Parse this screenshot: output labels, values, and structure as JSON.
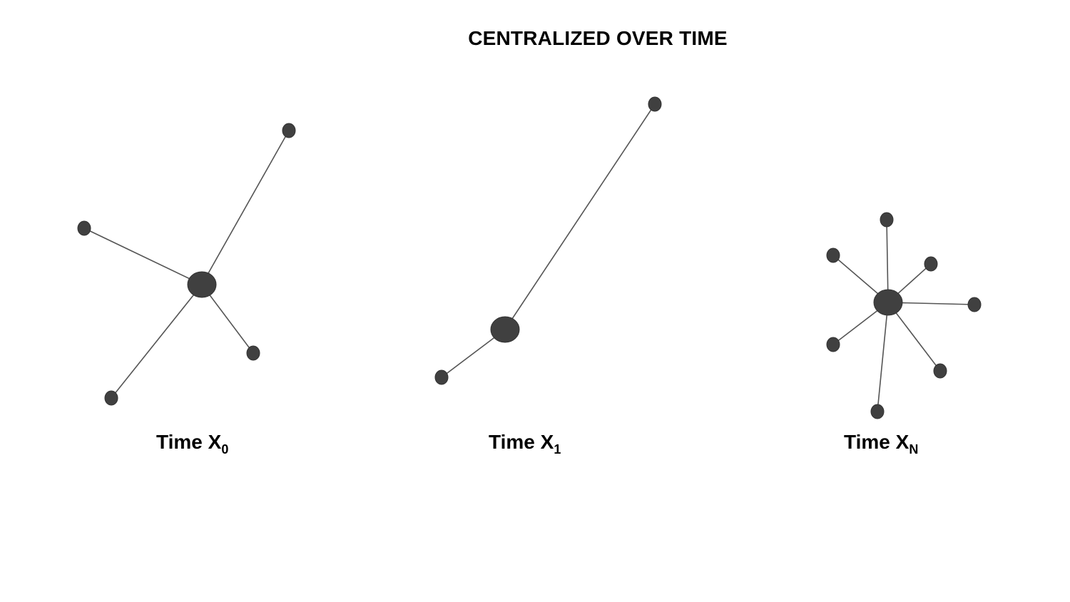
{
  "title": "CENTRALIZED OVER TIME",
  "panels": [
    {
      "caption": "Time X",
      "subscript": "0"
    },
    {
      "caption": "Time X",
      "subscript": "1"
    },
    {
      "caption": "Time X",
      "subscript": "N"
    }
  ],
  "colors": {
    "node": "#404040",
    "edge": "#555555",
    "text": "#000000"
  }
}
